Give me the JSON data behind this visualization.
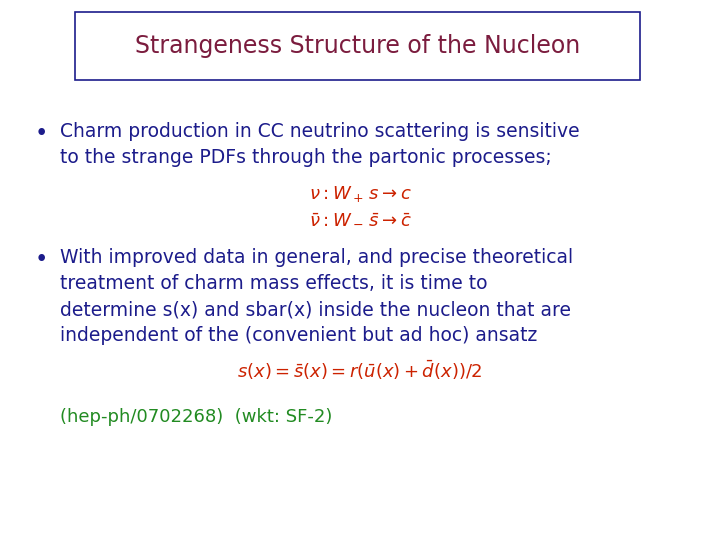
{
  "title": "Strangeness Structure of the Nucleon",
  "title_color": "#7B1C3E",
  "title_box_edge_color": "#1C1C8B",
  "background_color": "#FFFFFF",
  "bullet_color": "#1C1C8B",
  "eq_color": "#CC2200",
  "bullet1_line1": "Charm production in CC neutrino scattering is sensitive",
  "bullet1_line2": "to the strange PDFs through the partonic processes;",
  "eq1_line1": "$\\nu : W_+ \\, s \\rightarrow c$",
  "eq1_line2": "$\\bar{\\nu} : W_- \\, \\bar{s} \\rightarrow \\bar{c}$",
  "bullet2_line1": "With improved data in general, and precise theoretical",
  "bullet2_line2": "treatment of charm mass effects, it is time to",
  "bullet2_line3": "determine s(x) and sbar(x) inside the nucleon that are",
  "bullet2_line4": "independent of the (convenient but ad hoc) ansatz",
  "eq2": "$s(x) = \\bar{s}(x) = r(\\bar{u}(x) + \\bar{d}(x))/2$",
  "footer": "(hep-ph/0702268)  (wkt: SF-2)",
  "footer_color": "#228B22",
  "font_size_title": 17,
  "font_size_body": 13.5,
  "font_size_eq": 13,
  "font_size_footer": 13
}
